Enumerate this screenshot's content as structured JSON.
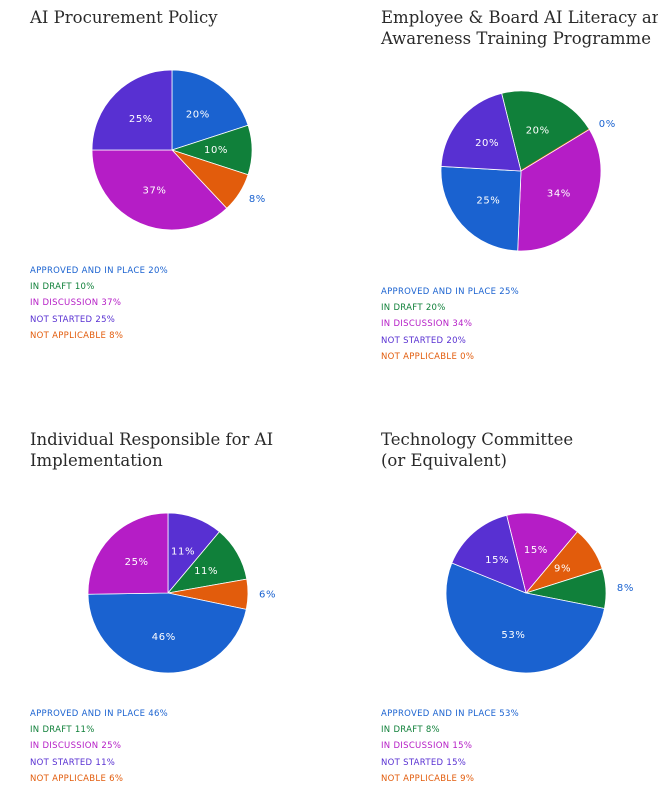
{
  "colors": {
    "approved": "#1a62d0",
    "draft": "#10803a",
    "discussion": "#b51dc6",
    "not_started": "#5830d2",
    "not_applicable": "#e25c0c"
  },
  "category_order": [
    "APPROVED AND IN PLACE",
    "IN DRAFT",
    "IN DISCUSSION",
    "NOT STARTED",
    "NOT APPLICABLE"
  ],
  "chart_data": [
    {
      "type": "pie",
      "title": "AI Procurement Policy",
      "categories": [
        "APPROVED AND IN PLACE",
        "IN DRAFT",
        "IN DISCUSSION",
        "NOT STARTED",
        "NOT APPLICABLE"
      ],
      "values": [
        20,
        10,
        37,
        25,
        8
      ],
      "slice_labels": [
        "20%",
        "10%",
        "37%",
        "25%",
        "8%"
      ],
      "legend": [
        "APPROVED AND IN PLACE 20%",
        "IN DRAFT 10%",
        "IN DISCUSSION 37%",
        "NOT STARTED 25%",
        "NOT APPLICABLE 8%"
      ]
    },
    {
      "type": "pie",
      "title": "Employee & Board AI Literacy and\nAwareness Training Programme",
      "categories": [
        "APPROVED AND IN PLACE",
        "IN DRAFT",
        "IN DISCUSSION",
        "NOT STARTED",
        "NOT APPLICABLE"
      ],
      "values": [
        25,
        20,
        34,
        20,
        0
      ],
      "slice_labels": [
        "25%",
        "20%",
        "34%",
        "20%",
        "0%"
      ],
      "legend": [
        "APPROVED AND IN PLACE 25%",
        "IN DRAFT 20%",
        "IN DISCUSSION 34%",
        "NOT STARTED 20%",
        "NOT APPLICABLE 0%"
      ]
    },
    {
      "type": "pie",
      "title": "Individual Responsible for AI\nImplementation",
      "categories": [
        "APPROVED AND IN PLACE",
        "IN DRAFT",
        "IN DISCUSSION",
        "NOT STARTED",
        "NOT APPLICABLE"
      ],
      "values": [
        46,
        11,
        25,
        11,
        6
      ],
      "slice_labels": [
        "46%",
        "11%",
        "25%",
        "11%",
        "6%"
      ],
      "legend": [
        "APPROVED AND IN PLACE 46%",
        "IN DRAFT 11%",
        "IN DISCUSSION 25%",
        "NOT STARTED 11%",
        "NOT APPLICABLE 6%"
      ]
    },
    {
      "type": "pie",
      "title": "Technology Committee\n(or Equivalent)",
      "categories": [
        "APPROVED AND IN PLACE",
        "IN DRAFT",
        "IN DISCUSSION",
        "NOT STARTED",
        "NOT APPLICABLE"
      ],
      "values": [
        53,
        8,
        15,
        15,
        9
      ],
      "slice_labels": [
        "53%",
        "8%",
        "15%",
        "15%",
        "9%"
      ],
      "legend": [
        "APPROVED AND IN PLACE 53%",
        "IN DRAFT 8%",
        "IN DISCUSSION 15%",
        "NOT STARTED 15%",
        "NOT APPLICABLE 9%"
      ]
    }
  ]
}
